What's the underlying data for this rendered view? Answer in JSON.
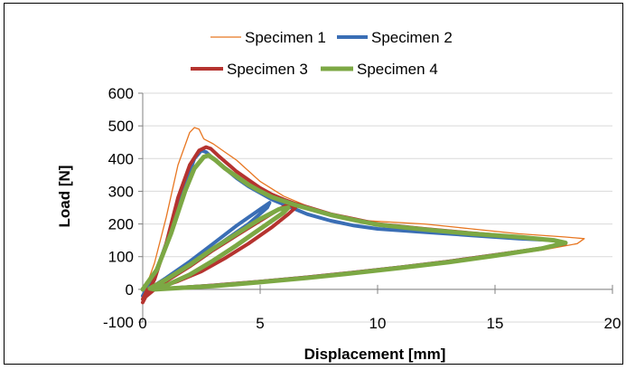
{
  "chart_data": {
    "type": "line",
    "title": "",
    "xlabel": "Displacement [mm]",
    "ylabel": "Load [N]",
    "xlim": [
      0,
      20
    ],
    "ylim": [
      -100,
      600
    ],
    "xticks": [
      0,
      5,
      10,
      15,
      20
    ],
    "yticks": [
      -100,
      0,
      100,
      200,
      300,
      400,
      500,
      600
    ],
    "xtick_labels": [
      "0",
      "5",
      "10",
      "15",
      "20"
    ],
    "ytick_labels": [
      "-100",
      "0",
      "100",
      "200",
      "300",
      "400",
      "500",
      "600"
    ],
    "grid": "horizontal",
    "legend": "top",
    "series": [
      {
        "name": "Specimen 1",
        "color": "#E87722",
        "x": [
          0,
          0.5,
          1.0,
          1.5,
          2.0,
          2.2,
          2.4,
          2.6,
          3.0,
          3.5,
          4.0,
          5.0,
          6.0,
          7.0,
          8.0,
          9.0,
          10.0,
          12.0,
          14.0,
          16.0,
          18.0,
          18.8,
          18.5,
          17.0,
          15.0,
          13.0,
          11.0,
          9.0,
          7.0,
          5.0,
          3.0,
          1.5,
          0.5,
          0
        ],
        "y": [
          -20,
          80,
          220,
          380,
          480,
          495,
          490,
          460,
          445,
          420,
          395,
          330,
          285,
          255,
          225,
          212,
          208,
          200,
          185,
          170,
          160,
          155,
          140,
          120,
          100,
          83,
          66,
          50,
          35,
          22,
          10,
          4,
          0,
          -20
        ]
      },
      {
        "name": "Specimen 2",
        "color": "#3A6EB5",
        "x": [
          0,
          0.6,
          1.2,
          1.8,
          2.2,
          2.5,
          2.7,
          3.0,
          3.5,
          4.0,
          4.5,
          5.0,
          5.5,
          6.0,
          7.0,
          8.0,
          9.0,
          10.0,
          12.0,
          14.0,
          16.0,
          17.5,
          17.8,
          17.0,
          15.0,
          13.0,
          11.0,
          9.0,
          7.0,
          5.0,
          3.0,
          1.5,
          0.5,
          0.3,
          1.0,
          2.0,
          3.0,
          4.0,
          5.0,
          5.4,
          5.3,
          4.5,
          3.5,
          2.5,
          1.5,
          0.8,
          0.3
        ],
        "y": [
          -20,
          60,
          180,
          320,
          400,
          425,
          420,
          400,
          370,
          340,
          315,
          295,
          275,
          260,
          230,
          210,
          195,
          185,
          175,
          165,
          155,
          150,
          140,
          125,
          105,
          85,
          68,
          52,
          37,
          24,
          12,
          5,
          0,
          2,
          35,
          85,
          140,
          195,
          245,
          265,
          250,
          200,
          150,
          100,
          55,
          20,
          2
        ]
      },
      {
        "name": "Specimen 3",
        "color": "#B5332F",
        "x": [
          0,
          0.5,
          1.0,
          1.5,
          2.0,
          2.4,
          2.7,
          2.9,
          3.2,
          3.6,
          4.0,
          4.5,
          5.0,
          5.5,
          6.0,
          6.5,
          7.0,
          8.0,
          9.0,
          10.0,
          12.0,
          14.0,
          16.0,
          17.5,
          18.0,
          17.2,
          15.0,
          13.0,
          11.0,
          9.0,
          7.0,
          5.0,
          3.0,
          1.5,
          0.5,
          0,
          0.2,
          1.0,
          2.0,
          3.0,
          4.0,
          5.0,
          5.8,
          6.2,
          6.5,
          6.2,
          5.5,
          4.5,
          3.5,
          2.5,
          1.5,
          0.8,
          0.3
        ],
        "y": [
          -40,
          30,
          140,
          280,
          380,
          425,
          435,
          430,
          410,
          385,
          360,
          335,
          310,
          290,
          275,
          262,
          252,
          230,
          215,
          200,
          185,
          172,
          160,
          150,
          140,
          128,
          105,
          85,
          68,
          52,
          37,
          24,
          12,
          5,
          0,
          -30,
          0,
          25,
          70,
          120,
          165,
          210,
          245,
          260,
          250,
          230,
          190,
          140,
          95,
          55,
          25,
          8,
          0
        ]
      },
      {
        "name": "Specimen 4",
        "color": "#7CA844",
        "x": [
          0,
          0.6,
          1.2,
          1.8,
          2.2,
          2.6,
          2.8,
          3.1,
          3.5,
          4.0,
          4.5,
          5.0,
          5.5,
          6.0,
          6.5,
          7.0,
          8.0,
          9.0,
          10.0,
          12.0,
          14.0,
          16.0,
          17.5,
          18.0,
          17.0,
          15.0,
          13.0,
          11.0,
          9.0,
          7.0,
          5.0,
          3.0,
          1.5,
          0.5,
          0.3,
          1.0,
          2.0,
          3.0,
          4.0,
          5.0,
          5.8,
          6.2,
          6.0,
          5.0,
          4.0,
          3.0,
          2.0,
          1.0,
          0.3
        ],
        "y": [
          0,
          60,
          170,
          300,
          370,
          405,
          410,
          395,
          370,
          345,
          320,
          300,
          282,
          270,
          258,
          248,
          228,
          212,
          198,
          183,
          170,
          160,
          150,
          142,
          125,
          103,
          83,
          66,
          50,
          35,
          22,
          10,
          4,
          0,
          3,
          30,
          75,
          125,
          170,
          215,
          245,
          250,
          235,
          185,
          135,
          88,
          45,
          12,
          3
        ]
      }
    ]
  }
}
